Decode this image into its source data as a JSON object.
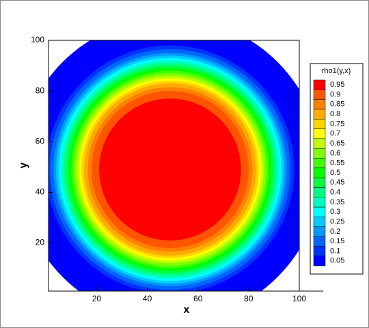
{
  "chart_data": {
    "type": "contour",
    "x_label": "x",
    "y_label": "y",
    "xlim": [
      1,
      100
    ],
    "ylim": [
      1,
      100
    ],
    "xticks": [
      20,
      40,
      60,
      80,
      100
    ],
    "yticks": [
      20,
      40,
      60,
      80,
      100
    ],
    "center": [
      49,
      49
    ],
    "legend_title": "rho1(y,x)",
    "levels": [
      0.05,
      0.1,
      0.15,
      0.2,
      0.25,
      0.3,
      0.35,
      0.4,
      0.45,
      0.5,
      0.55,
      0.6,
      0.65,
      0.7,
      0.75,
      0.8,
      0.85,
      0.9,
      0.95
    ],
    "radii": [
      60,
      49,
      47.5,
      46,
      45,
      44,
      43,
      42,
      41,
      40,
      39,
      38,
      37,
      36,
      35,
      34,
      32.5,
      31,
      28
    ],
    "colors": [
      "#0000ff",
      "#0033ff",
      "#0066ff",
      "#0099ff",
      "#00ccff",
      "#00ffff",
      "#00ffbf",
      "#00ff80",
      "#00ff40",
      "#00ff00",
      "#40ff00",
      "#80ff00",
      "#bfff00",
      "#ffff00",
      "#ffd500",
      "#ffaa00",
      "#ff8000",
      "#ff5500",
      "#ff0000"
    ]
  }
}
